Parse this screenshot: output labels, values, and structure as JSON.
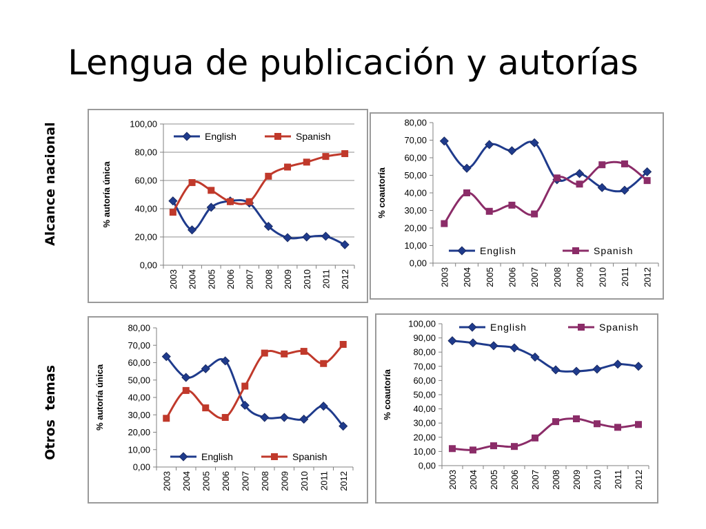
{
  "title": "Lengua de publicación y autorías",
  "row_labels": [
    "Alcance nacional",
    "Otros  temas"
  ],
  "colors": {
    "english": "#1f3b8c",
    "spanish_red": "#c0392b",
    "spanish_purple": "#8b2c68",
    "grid": "#8c8c8c",
    "axis": "#7f7f7f"
  },
  "chart_data": [
    {
      "type": "line",
      "title": "",
      "xlabel": "",
      "ylabel": "% autoría única",
      "ylim": [
        0,
        100
      ],
      "yticks": [
        "0,00",
        "20,00",
        "40,00",
        "60,00",
        "80,00",
        "100,00"
      ],
      "categories": [
        "2003",
        "2004",
        "2005",
        "2006",
        "2007",
        "2008",
        "2009",
        "2010",
        "2011",
        "2012"
      ],
      "legend": "top",
      "grid": true,
      "series": [
        {
          "name": "English",
          "color": "#1f3b8c",
          "marker": "diamond",
          "values": [
            45.5,
            25,
            41,
            45.5,
            44,
            27.5,
            19.5,
            20,
            20.5,
            14.5
          ]
        },
        {
          "name": "Spanish",
          "color": "#c0392b",
          "marker": "square",
          "values": [
            37.5,
            58.5,
            53,
            45,
            45,
            63,
            69.5,
            73,
            77,
            79
          ]
        }
      ]
    },
    {
      "type": "line",
      "title": "",
      "xlabel": "",
      "ylabel": "% coautoría",
      "ylim": [
        0,
        80
      ],
      "yticks": [
        "0,00",
        "10,00",
        "20,00",
        "30,00",
        "40,00",
        "50,00",
        "60,00",
        "70,00",
        "80,00"
      ],
      "categories": [
        "2003",
        "2004",
        "2005",
        "2006",
        "2007",
        "2008",
        "2009",
        "2010",
        "2011",
        "2012"
      ],
      "legend": "bottom",
      "grid": false,
      "series": [
        {
          "name": "English",
          "color": "#1f3b8c",
          "marker": "diamond",
          "values": [
            69.5,
            54,
            67.5,
            64,
            68.5,
            47.5,
            51,
            43,
            41.5,
            52
          ]
        },
        {
          "name": "Spanish",
          "color": "#8b2c68",
          "marker": "square",
          "values": [
            22.5,
            40,
            29.5,
            33,
            28,
            48.5,
            45,
            56,
            56.5,
            47
          ]
        }
      ]
    },
    {
      "type": "line",
      "title": "",
      "xlabel": "",
      "ylabel": "% autoría única",
      "ylim": [
        0,
        80
      ],
      "yticks": [
        "0,00",
        "10,00",
        "20,00",
        "30,00",
        "40,00",
        "50,00",
        "60,00",
        "70,00",
        "80,00"
      ],
      "categories": [
        "2003",
        "2004",
        "2005",
        "2006",
        "2007",
        "2008",
        "2009",
        "2010",
        "2011",
        "2012"
      ],
      "legend": "bottom",
      "grid": false,
      "series": [
        {
          "name": "English",
          "color": "#1f3b8c",
          "marker": "diamond",
          "values": [
            63.5,
            51.5,
            56.5,
            61,
            35.5,
            28.5,
            28.5,
            27.5,
            35,
            23.5
          ]
        },
        {
          "name": "Spanish",
          "color": "#c0392b",
          "marker": "square",
          "values": [
            28,
            44,
            34,
            28.5,
            46.5,
            65.5,
            65,
            66.5,
            59.5,
            70.5
          ]
        }
      ]
    },
    {
      "type": "line",
      "title": "",
      "xlabel": "",
      "ylabel": "% coautoría",
      "ylim": [
        0,
        100
      ],
      "yticks": [
        "0,00",
        "10,00",
        "20,00",
        "30,00",
        "40,00",
        "50,00",
        "60,00",
        "70,00",
        "80,00",
        "90,00",
        "100,00"
      ],
      "categories": [
        "2003",
        "2004",
        "2005",
        "2006",
        "2007",
        "2008",
        "2009",
        "2010",
        "2011",
        "2012"
      ],
      "legend": "top",
      "grid": false,
      "series": [
        {
          "name": "English",
          "color": "#1f3b8c",
          "marker": "diamond",
          "values": [
            88,
            86.5,
            84.5,
            83,
            76.5,
            67.5,
            66.5,
            68,
            71.5,
            70
          ]
        },
        {
          "name": "Spanish",
          "color": "#8b2c68",
          "marker": "square",
          "values": [
            12,
            11,
            14,
            13.5,
            19.5,
            31,
            33,
            29.5,
            27,
            29
          ]
        }
      ]
    }
  ]
}
